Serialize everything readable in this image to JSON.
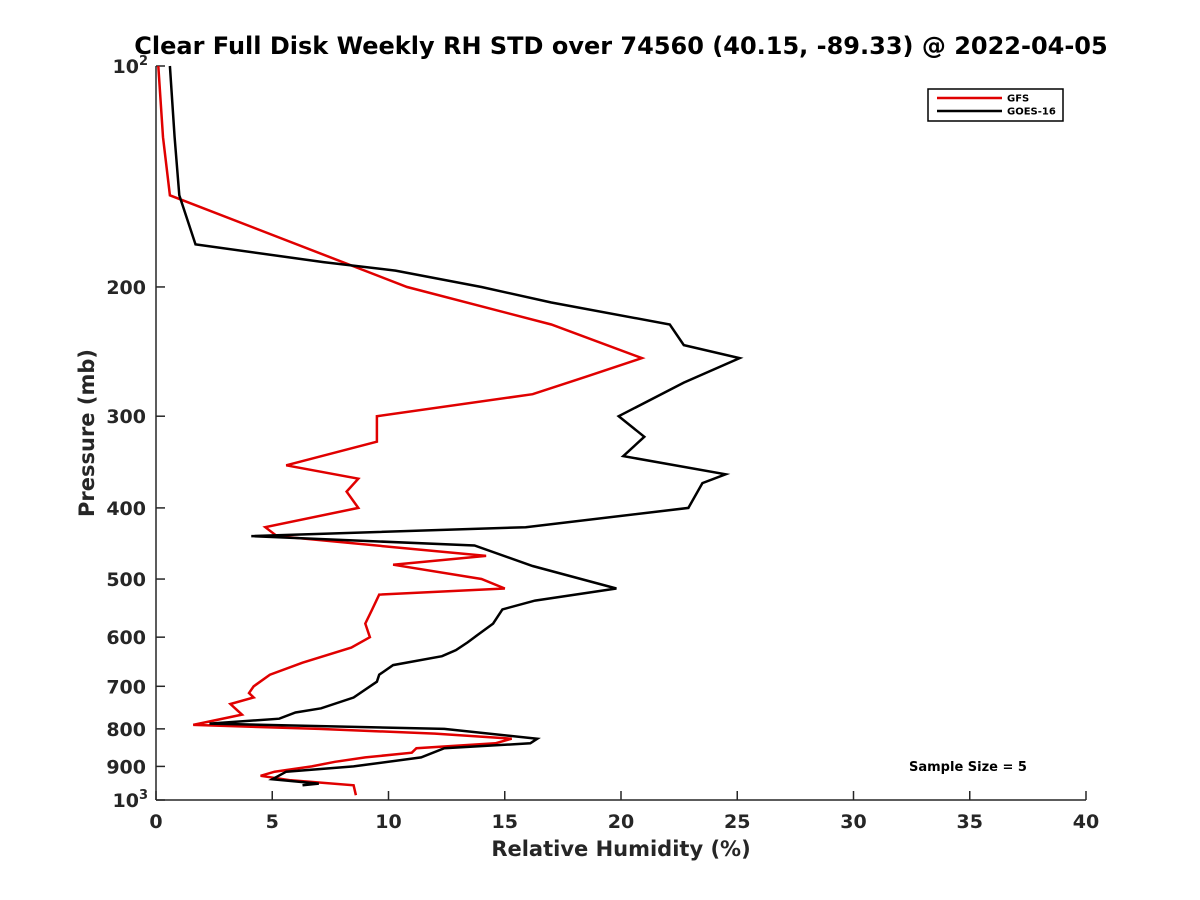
{
  "chart_data": {
    "type": "line",
    "title": "Clear Full Disk Weekly RH STD over 74560 (40.15, -89.33) @ 2022-04-05",
    "xlabel": "Relative Humidity (%)",
    "ylabel": "Pressure (mb)",
    "xlim": [
      0,
      40
    ],
    "ylim": [
      100,
      1000
    ],
    "y_scale": "log",
    "y_reversed": true,
    "grid": false,
    "legend_position": "top-right",
    "x_ticks": [
      0,
      5,
      10,
      15,
      20,
      25,
      30,
      35,
      40
    ],
    "y_ticks": [
      {
        "value": 100,
        "base": "10",
        "exp": "2"
      },
      {
        "value": 200,
        "label": "200"
      },
      {
        "value": 300,
        "label": "300"
      },
      {
        "value": 400,
        "label": "400"
      },
      {
        "value": 500,
        "label": "500"
      },
      {
        "value": 600,
        "label": "600"
      },
      {
        "value": 700,
        "label": "700"
      },
      {
        "value": 800,
        "label": "800"
      },
      {
        "value": 900,
        "label": "900"
      },
      {
        "value": 1000,
        "base": "10",
        "exp": "3"
      }
    ],
    "annotation": "Sample Size = 5",
    "series": [
      {
        "name": "GFS",
        "color": "#e00000",
        "points": [
          [
            0.1,
            100
          ],
          [
            0.3,
            125
          ],
          [
            0.6,
            150
          ],
          [
            10.8,
            200
          ],
          [
            17.0,
            225
          ],
          [
            20.9,
            250
          ],
          [
            18.5,
            265
          ],
          [
            16.2,
            280
          ],
          [
            9.5,
            300
          ],
          [
            9.5,
            325
          ],
          [
            5.6,
            350
          ],
          [
            8.7,
            365
          ],
          [
            8.2,
            380
          ],
          [
            8.7,
            400
          ],
          [
            4.7,
            425
          ],
          [
            5.2,
            437
          ],
          [
            14.2,
            465
          ],
          [
            10.2,
            478
          ],
          [
            14.0,
            500
          ],
          [
            15.0,
            515
          ],
          [
            9.6,
            525
          ],
          [
            9.3,
            550
          ],
          [
            9.0,
            575
          ],
          [
            9.2,
            600
          ],
          [
            8.4,
            620
          ],
          [
            6.3,
            650
          ],
          [
            4.9,
            675
          ],
          [
            4.2,
            700
          ],
          [
            4.0,
            715
          ],
          [
            4.2,
            725
          ],
          [
            3.2,
            740
          ],
          [
            3.5,
            755
          ],
          [
            3.7,
            765
          ],
          [
            1.6,
            790
          ],
          [
            7.0,
            800
          ],
          [
            12.0,
            812
          ],
          [
            15.3,
            825
          ],
          [
            14.6,
            837
          ],
          [
            11.2,
            850
          ],
          [
            11.0,
            862
          ],
          [
            9.0,
            875
          ],
          [
            7.7,
            887
          ],
          [
            6.7,
            900
          ],
          [
            5.1,
            915
          ],
          [
            4.5,
            927
          ],
          [
            5.8,
            940
          ],
          [
            8.5,
            955
          ],
          [
            8.6,
            985
          ]
        ]
      },
      {
        "name": "GOES-16",
        "color": "#000000",
        "points": [
          [
            0.6,
            100
          ],
          [
            0.8,
            125
          ],
          [
            1.0,
            150
          ],
          [
            1.7,
            175
          ],
          [
            7.2,
            185
          ],
          [
            10.3,
            190
          ],
          [
            14.0,
            200
          ],
          [
            17.0,
            210
          ],
          [
            22.1,
            225
          ],
          [
            22.7,
            240
          ],
          [
            25.1,
            250
          ],
          [
            22.7,
            270
          ],
          [
            19.9,
            300
          ],
          [
            21.0,
            320
          ],
          [
            20.1,
            340
          ],
          [
            24.5,
            360
          ],
          [
            23.5,
            370
          ],
          [
            22.9,
            400
          ],
          [
            15.9,
            425
          ],
          [
            4.1,
            437
          ],
          [
            13.7,
            450
          ],
          [
            16.2,
            480
          ],
          [
            19.8,
            515
          ],
          [
            16.3,
            535
          ],
          [
            14.9,
            550
          ],
          [
            14.5,
            575
          ],
          [
            13.7,
            600
          ],
          [
            13.4,
            610
          ],
          [
            12.9,
            625
          ],
          [
            12.3,
            637
          ],
          [
            10.2,
            655
          ],
          [
            9.6,
            675
          ],
          [
            9.5,
            690
          ],
          [
            8.5,
            725
          ],
          [
            7.1,
            750
          ],
          [
            6.0,
            760
          ],
          [
            5.3,
            775
          ],
          [
            2.3,
            787
          ],
          [
            12.4,
            800
          ],
          [
            16.4,
            825
          ],
          [
            16.1,
            837
          ],
          [
            12.4,
            850
          ],
          [
            11.4,
            875
          ],
          [
            8.5,
            900
          ],
          [
            5.6,
            915
          ],
          [
            5.0,
            937
          ],
          [
            7.0,
            950
          ],
          [
            6.3,
            955
          ]
        ]
      }
    ]
  }
}
